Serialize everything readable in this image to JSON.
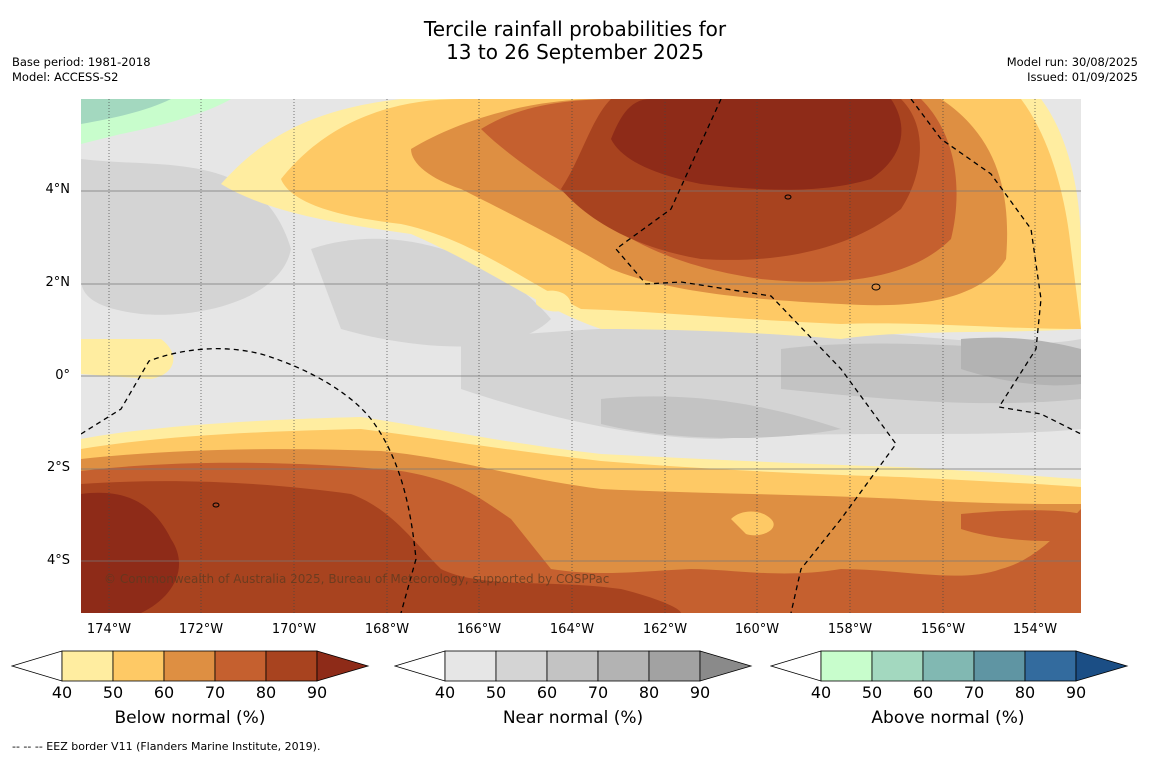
{
  "title": {
    "line1": "Tercile rainfall probabilities for",
    "line2": "13 to 26 September 2025"
  },
  "meta_left": {
    "base_period": "Base period: 1981-2018",
    "model": "Model: ACCESS-S2"
  },
  "meta_right": {
    "model_run": "Model run: 30/08/2025",
    "issued": "Issued: 01/09/2025"
  },
  "map": {
    "lat_labels": [
      "4°N",
      "2°N",
      "0°",
      "2°S",
      "4°S"
    ],
    "lon_labels": [
      "174°W",
      "172°W",
      "170°W",
      "168°W",
      "166°W",
      "164°W",
      "162°W",
      "160°W",
      "158°W",
      "156°W",
      "154°W"
    ],
    "credit": "© Commonwealth of Australia 2025, Bureau of Meteorology, supported by COSPPac"
  },
  "colorbars": [
    {
      "name": "below",
      "label": "Below normal (%)",
      "ticks": [
        "40",
        "50",
        "60",
        "70",
        "80",
        "90"
      ],
      "colors": [
        "#ffffff",
        "#ffeda0",
        "#fec965",
        "#de8f42",
        "#c5602f",
        "#a8431f",
        "#8e2b18"
      ]
    },
    {
      "name": "near",
      "label": "Near normal (%)",
      "ticks": [
        "40",
        "50",
        "60",
        "70",
        "80",
        "90"
      ],
      "colors": [
        "#ffffff",
        "#e6e6e6",
        "#d4d4d4",
        "#c3c3c3",
        "#b3b3b3",
        "#a2a2a2",
        "#8a8a8a"
      ]
    },
    {
      "name": "above",
      "label": "Above normal (%)",
      "ticks": [
        "40",
        "50",
        "60",
        "70",
        "80",
        "90"
      ],
      "colors": [
        "#ffffff",
        "#c8fdcc",
        "#a3d8bf",
        "#81b8b2",
        "#5f95a3",
        "#336b9e",
        "#1b4e85"
      ]
    }
  ],
  "footnote": "--  --  -- EEZ border V11 (Flanders Marine Institute, 2019)."
}
